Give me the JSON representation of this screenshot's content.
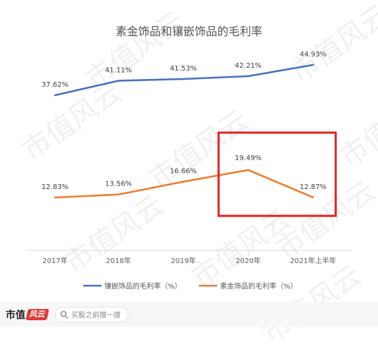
{
  "chart_data": {
    "type": "line",
    "title": "素金饰品和镶嵌饰品的毛利率",
    "categories": [
      "2017年",
      "2018年",
      "2019年",
      "2020年",
      "2021年上半年"
    ],
    "series": [
      {
        "name": "镶嵌饰品的毛利率（%）",
        "color": "#4472c4",
        "values": [
          37.62,
          41.11,
          41.53,
          42.21,
          44.93
        ],
        "labels": [
          "37.62%",
          "41.11%",
          "41.53%",
          "42.21%",
          "44.93%"
        ]
      },
      {
        "name": "素金饰品的毛利率（%）",
        "color": "#ed7d31",
        "values": [
          12.83,
          13.56,
          16.66,
          19.49,
          12.87
        ],
        "labels": [
          "12.83%",
          "13.56%",
          "16.66%",
          "19.49%",
          "12.87%"
        ]
      }
    ],
    "ylim": [
      0,
      50
    ],
    "grid": false,
    "legend_position": "bottom",
    "highlight": {
      "from_category": "2020年",
      "to_category": "2021年上半年",
      "color": "#e02020"
    },
    "watermark_text": "市值风云"
  },
  "footer": {
    "brand_text": "市值",
    "brand_mark": "风云",
    "search_placeholder": "买股之前搜一搜"
  }
}
